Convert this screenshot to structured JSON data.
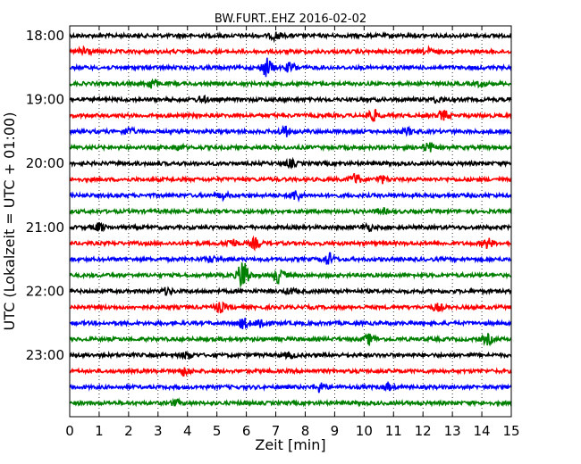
{
  "chart_data": {
    "type": "line",
    "title": "BW.FURT..EHZ 2016-02-02",
    "xlabel": "Zeit  [min]",
    "ylabel": "UTC (Lokalzeit = UTC + 01:00)",
    "xlim": [
      0,
      15
    ],
    "x_ticks": [
      "0",
      "1",
      "2",
      "3",
      "4",
      "5",
      "6",
      "7",
      "8",
      "9",
      "10",
      "11",
      "12",
      "13",
      "14",
      "15"
    ],
    "y_ticks": [
      {
        "label": "18:00",
        "trace": 0
      },
      {
        "label": "19:00",
        "trace": 4
      },
      {
        "label": "20:00",
        "trace": 8
      },
      {
        "label": "21:00",
        "trace": 12
      },
      {
        "label": "22:00",
        "trace": 16
      },
      {
        "label": "23:00",
        "trace": 20
      }
    ],
    "grid": "vertical dotted at each minute",
    "trace_interval_minutes": 15,
    "color_cycle": [
      "#000000",
      "#ff0000",
      "#0000ff",
      "#008000"
    ],
    "traces": [
      {
        "start": "18:00",
        "events": [
          [
            7.0,
            0.8
          ]
        ]
      },
      {
        "start": "18:15",
        "events": [
          [
            0.5,
            1.2
          ],
          [
            12.2,
            0.6
          ]
        ]
      },
      {
        "start": "18:30",
        "events": [
          [
            6.7,
            2.0
          ],
          [
            7.5,
            1.0
          ]
        ]
      },
      {
        "start": "18:45",
        "events": [
          [
            2.8,
            1.0
          ],
          [
            14.0,
            0.5
          ]
        ]
      },
      {
        "start": "19:00",
        "events": [
          [
            4.5,
            0.6
          ],
          [
            12.5,
            0.5
          ]
        ]
      },
      {
        "start": "19:15",
        "events": [
          [
            10.3,
            1.2
          ],
          [
            12.7,
            1.0
          ]
        ]
      },
      {
        "start": "19:30",
        "events": [
          [
            2.0,
            0.7
          ],
          [
            7.3,
            1.0
          ],
          [
            11.5,
            0.6
          ]
        ]
      },
      {
        "start": "19:45",
        "events": [
          [
            3.7,
            0.5
          ],
          [
            12.2,
            1.0
          ]
        ]
      },
      {
        "start": "20:00",
        "events": [
          [
            7.5,
            0.7
          ]
        ]
      },
      {
        "start": "20:15",
        "events": [
          [
            9.7,
            1.2
          ],
          [
            10.6,
            0.7
          ]
        ]
      },
      {
        "start": "20:30",
        "events": [
          [
            5.2,
            0.6
          ],
          [
            7.7,
            1.0
          ]
        ]
      },
      {
        "start": "20:45",
        "events": [
          [
            10.6,
            0.5
          ]
        ]
      },
      {
        "start": "21:00",
        "events": [
          [
            1.0,
            0.8
          ],
          [
            10.1,
            0.7
          ]
        ]
      },
      {
        "start": "21:15",
        "events": [
          [
            5.5,
            0.9
          ],
          [
            6.3,
            1.0
          ],
          [
            14.2,
            1.0
          ]
        ]
      },
      {
        "start": "21:30",
        "events": [
          [
            4.8,
            0.6
          ],
          [
            8.8,
            1.2
          ]
        ]
      },
      {
        "start": "21:45",
        "events": [
          [
            5.9,
            3.5
          ],
          [
            7.1,
            1.6
          ]
        ]
      },
      {
        "start": "22:00",
        "events": [
          [
            3.3,
            0.6
          ],
          [
            7.5,
            0.5
          ]
        ]
      },
      {
        "start": "22:15",
        "events": [
          [
            5.1,
            1.0
          ],
          [
            12.5,
            0.7
          ]
        ]
      },
      {
        "start": "22:30",
        "events": [
          [
            5.9,
            1.0
          ],
          [
            6.5,
            1.2
          ]
        ]
      },
      {
        "start": "22:45",
        "events": [
          [
            10.2,
            1.1
          ],
          [
            14.2,
            1.0
          ]
        ]
      },
      {
        "start": "23:00",
        "events": [
          [
            4.0,
            0.7
          ],
          [
            7.5,
            0.5
          ]
        ]
      },
      {
        "start": "23:15",
        "events": [
          [
            3.9,
            0.8
          ]
        ]
      },
      {
        "start": "23:30",
        "events": [
          [
            8.5,
            1.0
          ],
          [
            10.8,
            0.6
          ]
        ]
      },
      {
        "start": "23:45",
        "events": [
          [
            3.6,
            0.5
          ]
        ]
      }
    ]
  }
}
